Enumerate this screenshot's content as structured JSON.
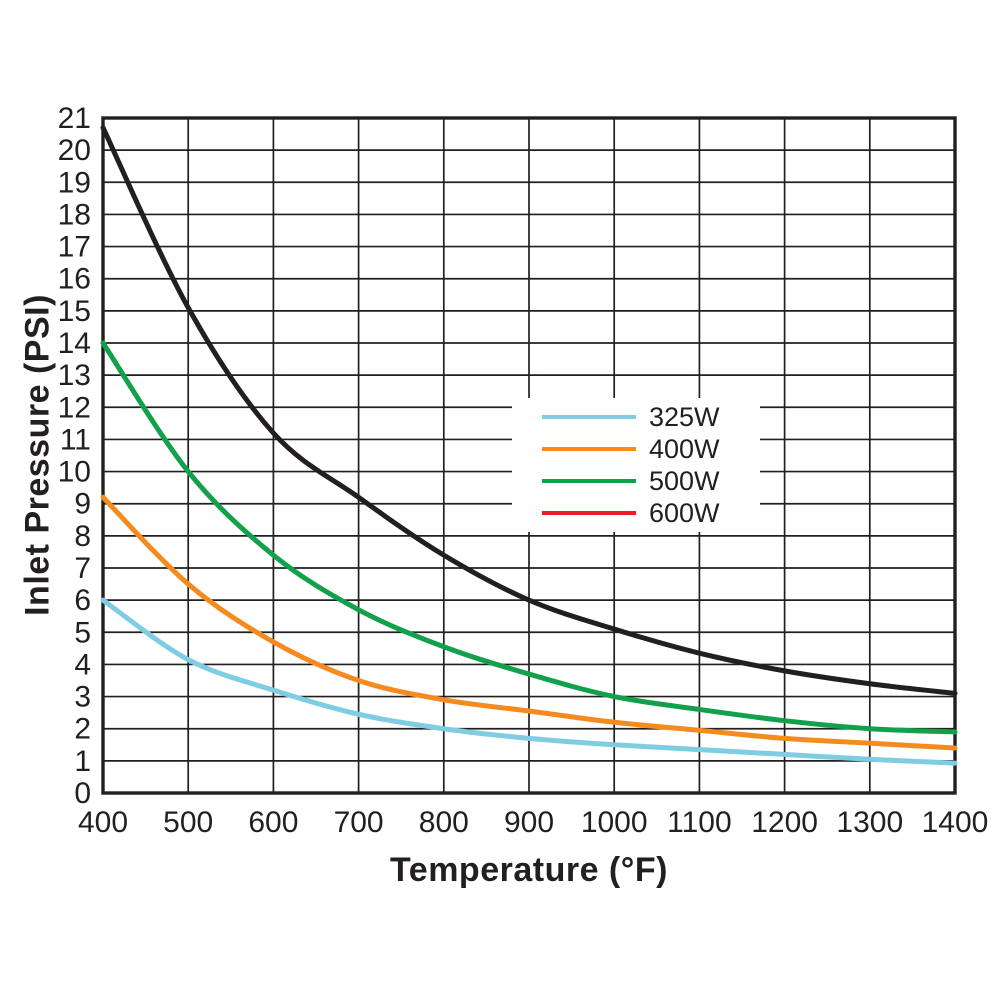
{
  "page": {
    "background": "#FFFFFF",
    "text_color": "#231F20"
  },
  "chart_data": {
    "type": "line",
    "title": "",
    "xlabel": "Temperature (°F)",
    "ylabel": "Inlet Pressure (PSI)",
    "xlim": [
      400,
      1400
    ],
    "ylim": [
      0,
      21
    ],
    "x_ticks": [
      400,
      500,
      600,
      700,
      800,
      900,
      1000,
      1100,
      1200,
      1300,
      1400
    ],
    "y_ticks": [
      0,
      1,
      2,
      3,
      4,
      5,
      6,
      7,
      8,
      9,
      10,
      11,
      12,
      13,
      14,
      15,
      16,
      17,
      18,
      19,
      20,
      21
    ],
    "grid": true,
    "grid_color": "#231F20",
    "axis_color": "#231F20",
    "legend": {
      "position": "inside-upper-right",
      "background": "#FFFFFF",
      "entries": [
        "325W",
        "400W",
        "500W",
        "600W"
      ]
    },
    "x": [
      400,
      500,
      600,
      700,
      800,
      900,
      1000,
      1100,
      1200,
      1300,
      1400
    ],
    "series": [
      {
        "name": "325W",
        "legend_color": "#7FCDE3",
        "line_color": "#7FCDE3",
        "values": [
          6.0,
          4.15,
          3.2,
          2.45,
          2.0,
          1.7,
          1.5,
          1.35,
          1.2,
          1.05,
          0.93
        ]
      },
      {
        "name": "400W",
        "legend_color": "#F58B1F",
        "line_color": "#F58B1F",
        "values": [
          9.2,
          6.5,
          4.7,
          3.5,
          2.9,
          2.55,
          2.2,
          1.95,
          1.7,
          1.55,
          1.4
        ]
      },
      {
        "name": "500W",
        "legend_color": "#12A14B",
        "line_color": "#12A14B",
        "values": [
          14.0,
          10.0,
          7.4,
          5.7,
          4.55,
          3.7,
          3.0,
          2.6,
          2.25,
          2.0,
          1.9
        ]
      },
      {
        "name": "600W",
        "legend_color": "#ED1C24",
        "line_color": "#231F20",
        "values": [
          20.7,
          15.1,
          11.2,
          9.2,
          7.4,
          6.0,
          5.1,
          4.35,
          3.8,
          3.4,
          3.1
        ]
      }
    ]
  }
}
